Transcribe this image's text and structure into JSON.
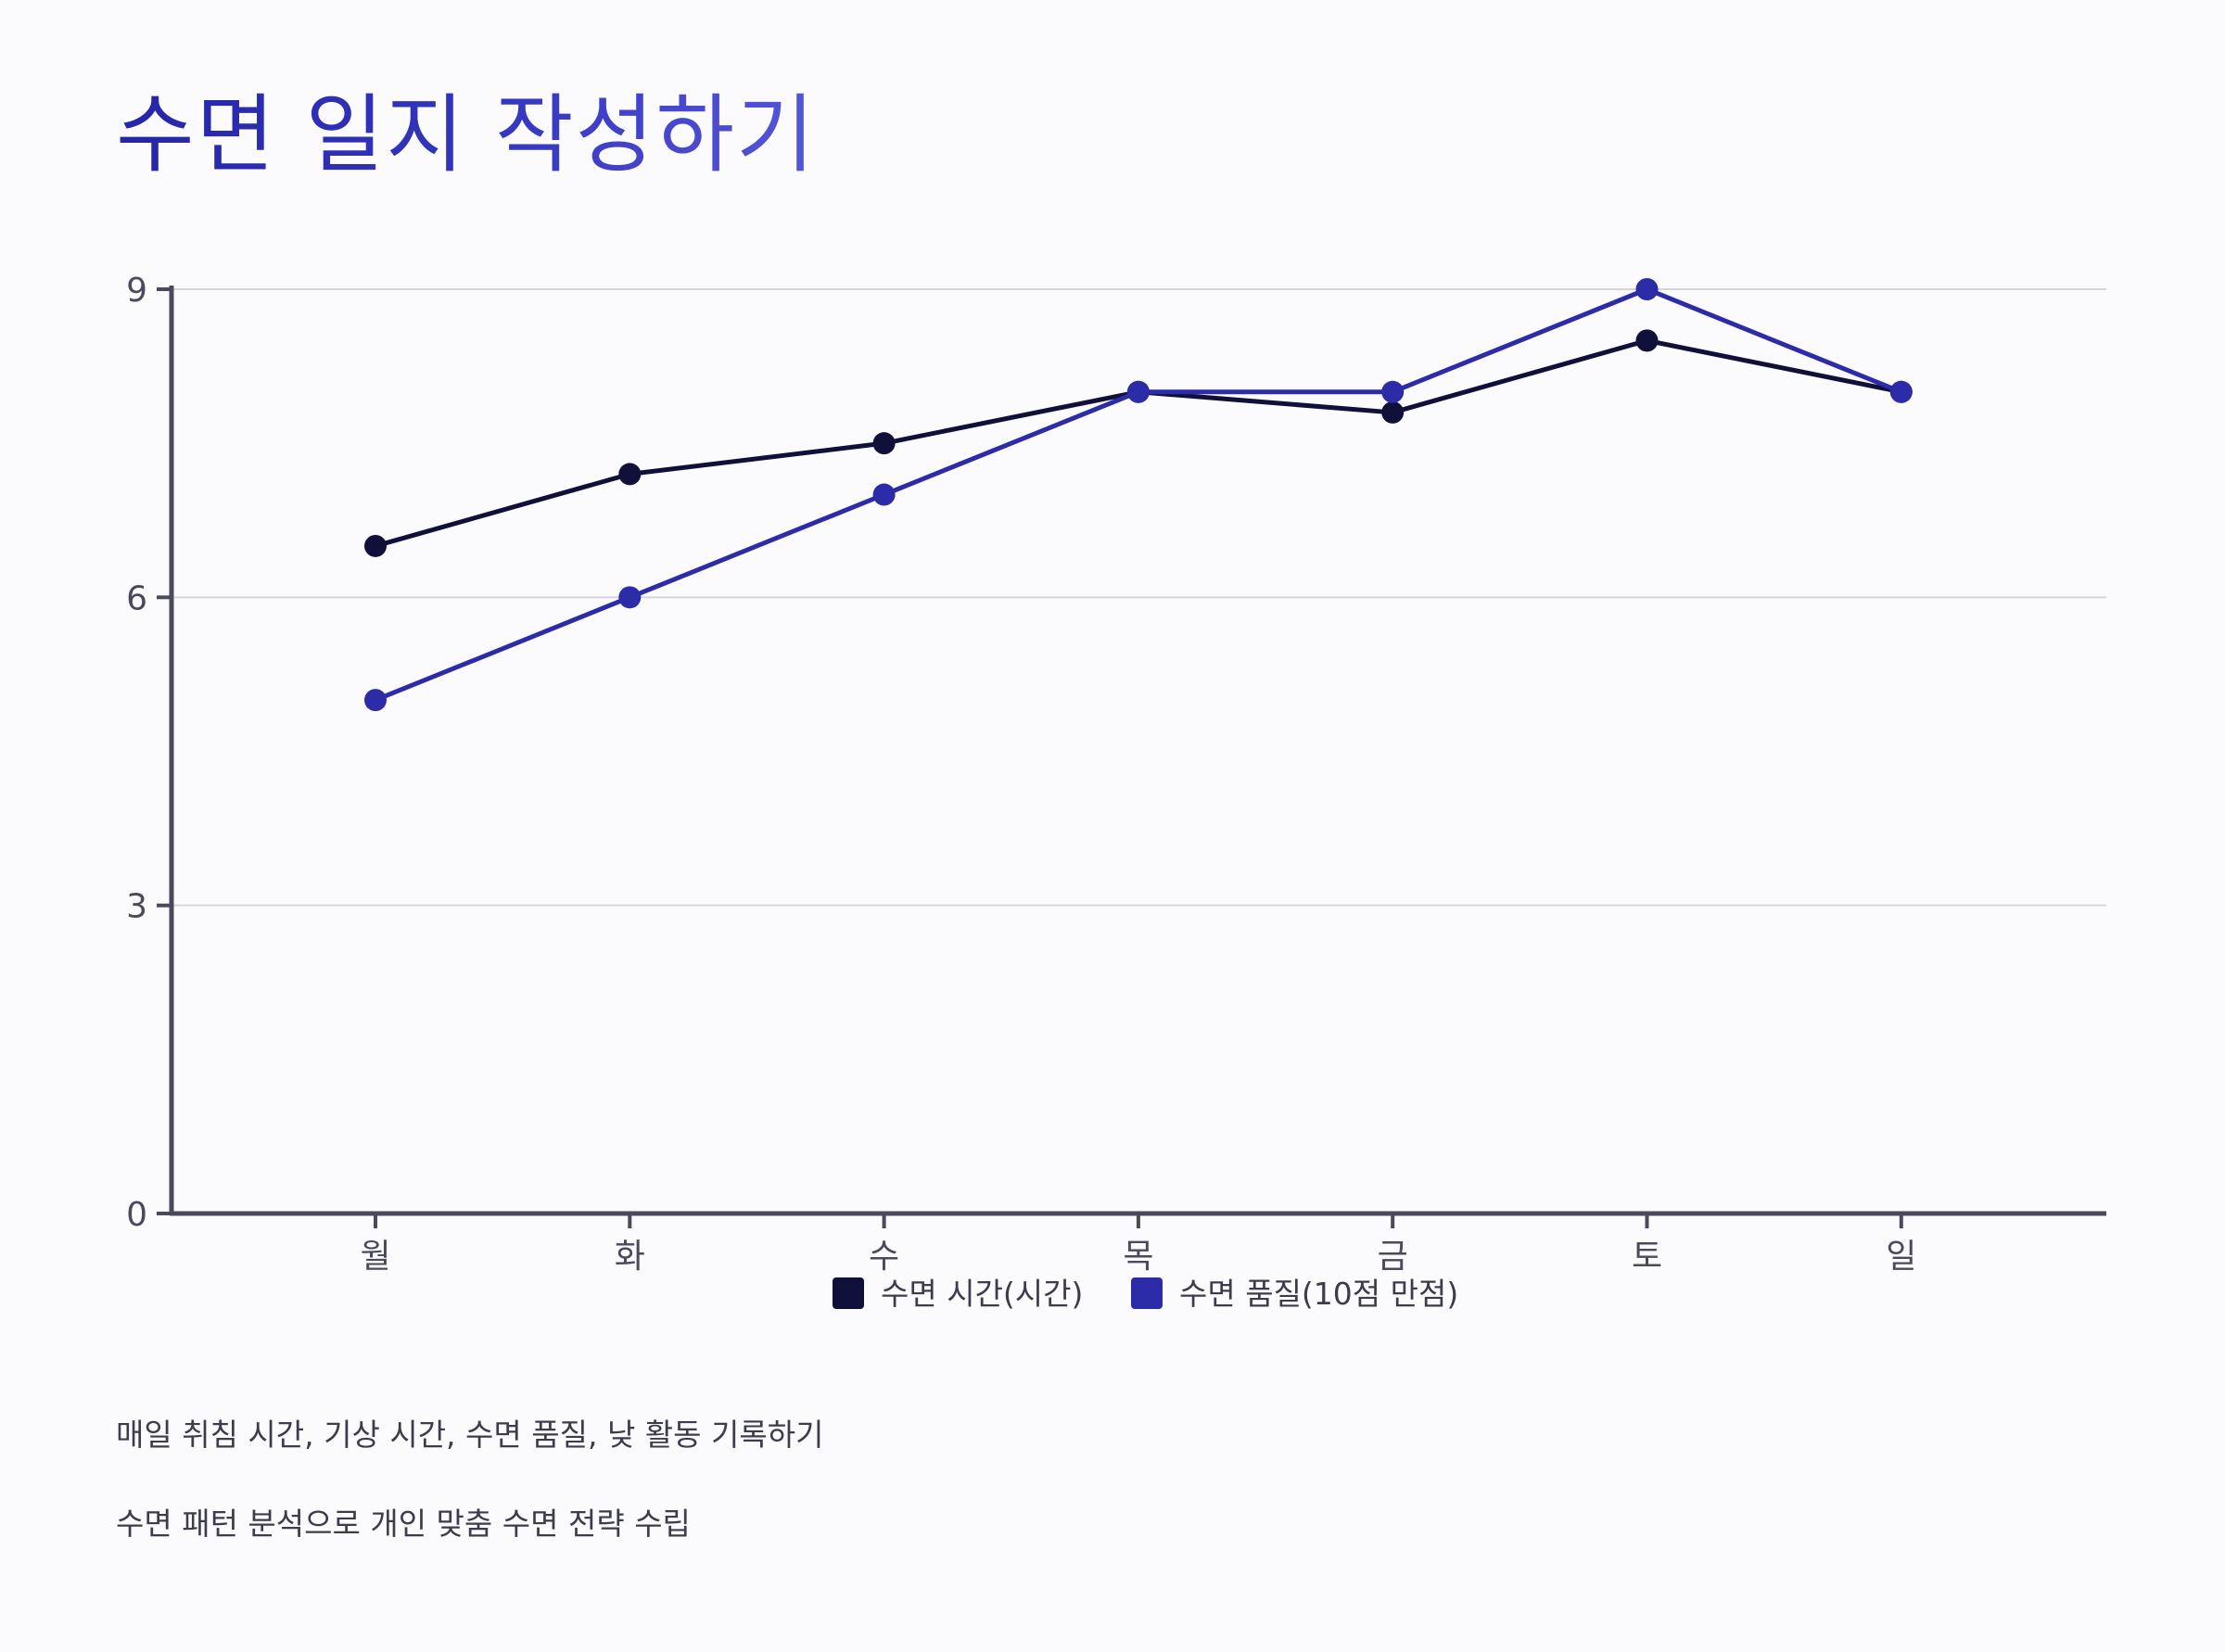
{
  "title": "수면 일지 작성하기",
  "notes": [
    "매일 취침 시간, 기상 시간, 수면 품질, 낮 활동 기록하기",
    "수면 패턴 분석으로 개인 맞춤 수면 전략 수립"
  ],
  "chart_data": {
    "type": "line",
    "title": "",
    "xlabel": "",
    "ylabel": "",
    "categories": [
      "월",
      "화",
      "수",
      "목",
      "금",
      "토",
      "일"
    ],
    "ylim": [
      0,
      9
    ],
    "yticks": [
      0,
      3,
      6,
      9
    ],
    "grid": true,
    "legend_position": "bottom-center",
    "series": [
      {
        "name": "수면 시간(시간)",
        "color": "#10103a",
        "values": [
          6.5,
          7.2,
          7.5,
          8.0,
          7.8,
          8.5,
          8.0
        ]
      },
      {
        "name": "수면 품질(10점 만점)",
        "color": "#2c2ca8",
        "values": [
          5,
          6,
          7,
          8,
          8,
          9,
          8
        ]
      }
    ]
  }
}
